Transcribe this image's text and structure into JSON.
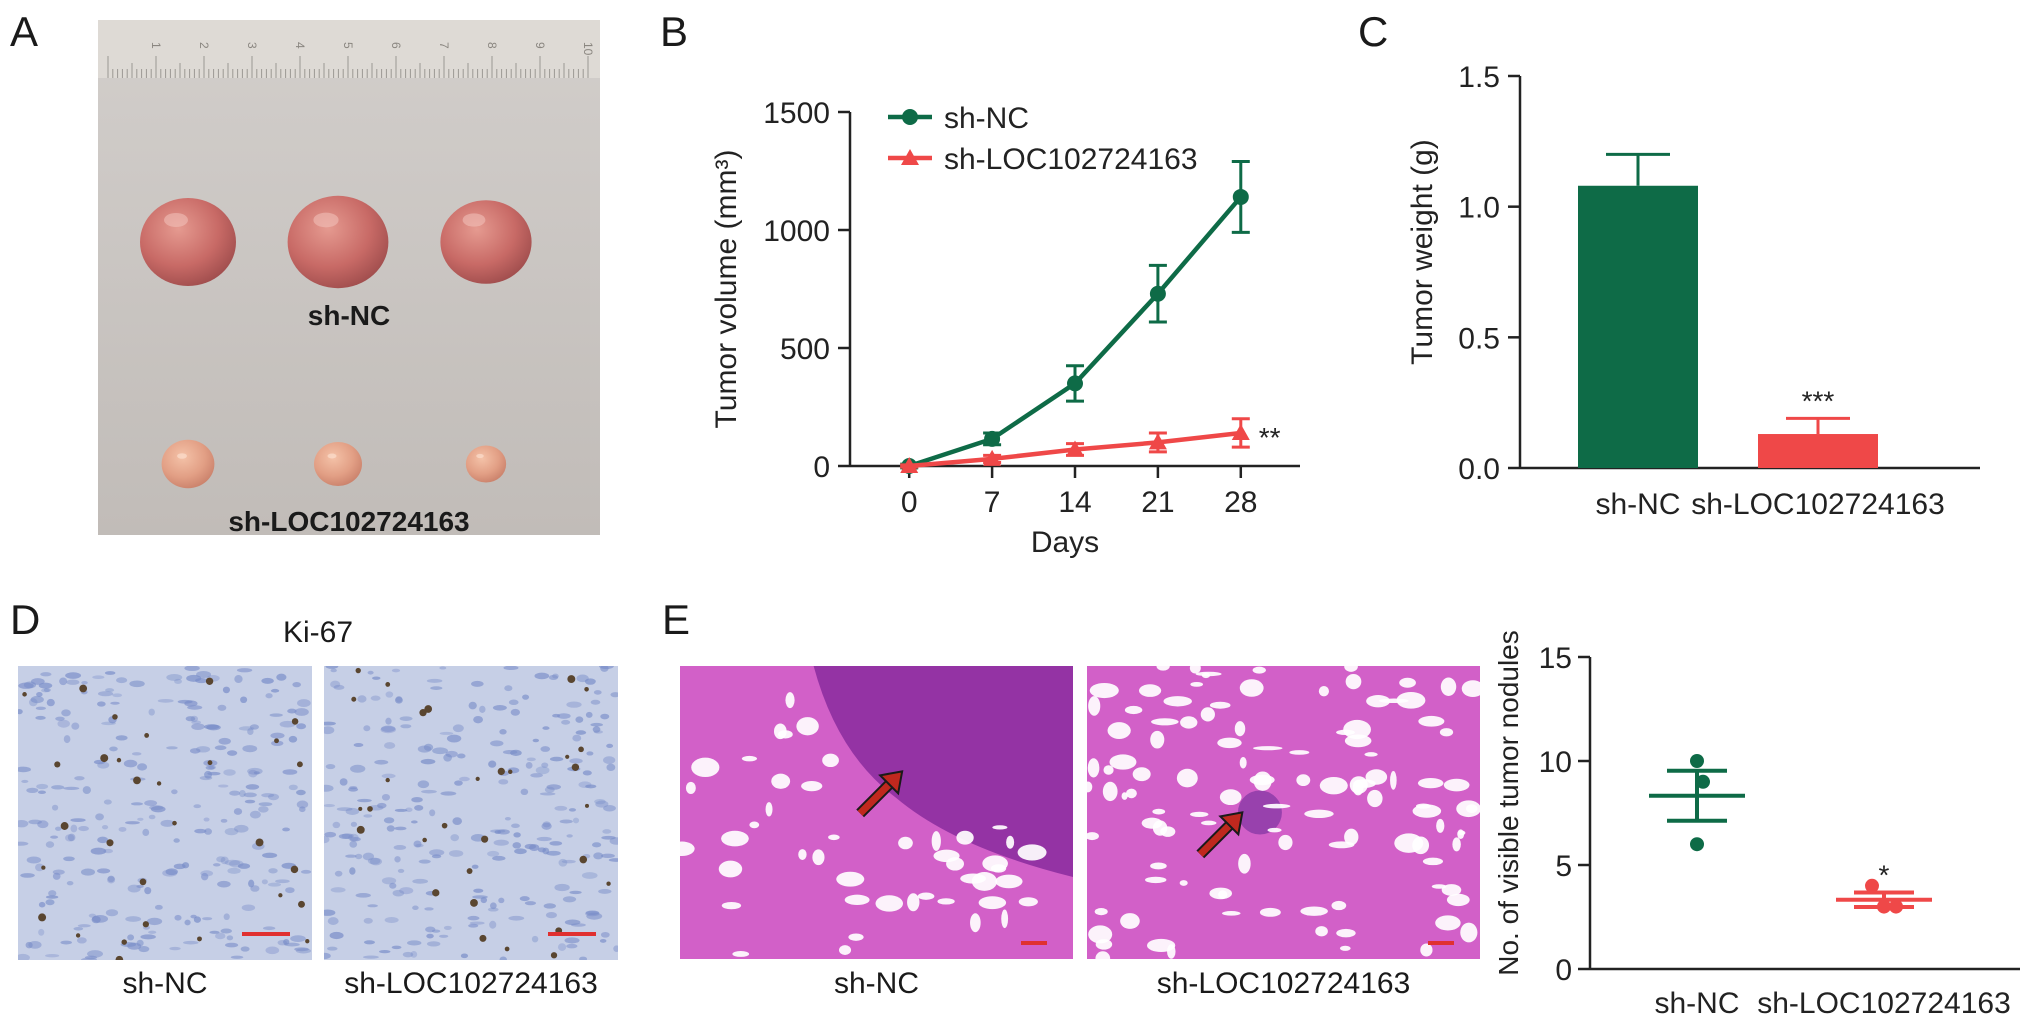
{
  "colors": {
    "green": "#0e6b47",
    "red": "#ef4848",
    "scale_bar": "#e03030",
    "arrow": "#c0281e",
    "tumor_photo_bg": "#c9c4c0",
    "ki67_bg": "#c6cfe6",
    "he_bg": "#d260c8"
  },
  "panels": {
    "A": {
      "letter": "A",
      "group1_label": "sh-NC",
      "group2_label": "sh-LOC102724163",
      "ruler_ticks": [
        "1",
        "2",
        "3",
        "4",
        "5",
        "6",
        "7",
        "8",
        "9",
        "10"
      ],
      "tumor_sizes_group1": [
        1.0,
        1.05,
        0.95
      ],
      "tumor_sizes_group2": [
        0.55,
        0.5,
        0.42
      ]
    },
    "B": {
      "letter": "B"
    },
    "C": {
      "letter": "C"
    },
    "D": {
      "letter": "D",
      "title": "Ki-67",
      "labels": [
        "sh-NC",
        "sh-LOC102724163"
      ]
    },
    "E": {
      "letter": "E",
      "labels": [
        "sh-NC",
        "sh-LOC102724163"
      ]
    }
  },
  "chart_data": [
    {
      "panel": "B",
      "type": "line",
      "xlabel": "Days",
      "ylabel": "Tumor volume (mm³)",
      "x": [
        0,
        7,
        14,
        21,
        28
      ],
      "xlim": [
        -5,
        33
      ],
      "ylim": [
        0,
        1500
      ],
      "yticks": [
        0,
        500,
        1000,
        1500
      ],
      "legend_position": "top-left",
      "series": [
        {
          "name": "sh-NC",
          "marker": "circle",
          "values": [
            0,
            115,
            350,
            730,
            1140
          ],
          "errors": [
            8,
            25,
            75,
            120,
            150
          ]
        },
        {
          "name": "sh-LOC102724163",
          "marker": "triangle",
          "values": [
            0,
            30,
            70,
            100,
            140
          ],
          "errors": [
            5,
            15,
            25,
            40,
            60
          ]
        }
      ],
      "annotation": "**"
    },
    {
      "panel": "C",
      "type": "bar",
      "ylabel": "Tumor weight (g)",
      "categories": [
        "sh-NC",
        "sh-LOC102724163"
      ],
      "values": [
        1.08,
        0.13
      ],
      "errors": [
        0.12,
        0.06
      ],
      "ylim": [
        0,
        1.5
      ],
      "yticks": [
        "0.0",
        "0.5",
        "1.0",
        "1.5"
      ],
      "annotations": [
        "",
        "***"
      ]
    },
    {
      "panel": "E",
      "type": "scatter",
      "ylabel": "No. of visible tumor nodules",
      "categories": [
        "sh-NC",
        "sh-LOC102724163"
      ],
      "points": [
        [
          10,
          9,
          6
        ],
        [
          4,
          3,
          3
        ]
      ],
      "means": [
        8.33,
        3.33
      ],
      "sems": [
        1.2,
        0.35
      ],
      "ylim": [
        0,
        15
      ],
      "yticks": [
        0,
        5,
        10,
        15
      ],
      "annotations": [
        "",
        "*"
      ]
    }
  ]
}
